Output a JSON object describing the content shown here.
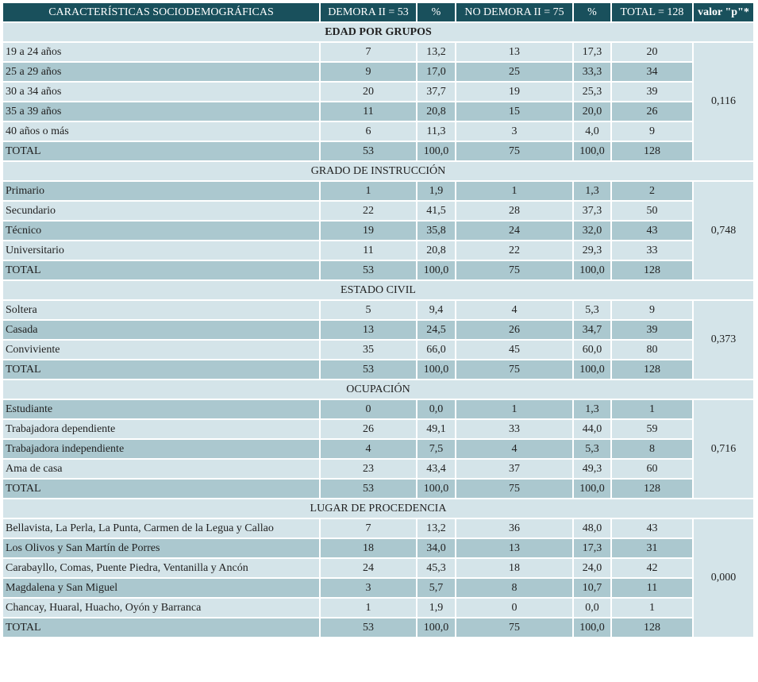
{
  "header": [
    "CARACTERÍSTICAS SOCIODEMOGRÁFICAS",
    "DEMORA II = 53",
    "%",
    "NO DEMORA II = 75",
    "%",
    "TOTAL = 128",
    "valor \"p\"*"
  ],
  "sections": [
    {
      "title": "EDAD POR GRUPOS",
      "p_value": "0,116",
      "rows": [
        [
          "19 a 24 años",
          "7",
          "13,2",
          "13",
          "17,3",
          "20"
        ],
        [
          "25 a 29 años",
          "9",
          "17,0",
          "25",
          "33,3",
          "34"
        ],
        [
          "30 a 34 años",
          "20",
          "37,7",
          "19",
          "25,3",
          "39"
        ],
        [
          "35 a 39 años",
          "11",
          "20,8",
          "15",
          "20,0",
          "26"
        ],
        [
          "40 años o más",
          "6",
          "11,3",
          "3",
          "4,0",
          "9"
        ],
        [
          "TOTAL",
          "53",
          "100,0",
          "75",
          "100,0",
          "128"
        ]
      ]
    },
    {
      "title": "GRADO DE INSTRUCCIÓN",
      "p_value": "0,748",
      "rows": [
        [
          "Primario",
          "1",
          "1,9",
          "1",
          "1,3",
          "2"
        ],
        [
          "Secundario",
          "22",
          "41,5",
          "28",
          "37,3",
          "50"
        ],
        [
          "Técnico",
          "19",
          "35,8",
          "24",
          "32,0",
          "43"
        ],
        [
          "Universitario",
          "11",
          "20,8",
          "22",
          "29,3",
          "33"
        ],
        [
          "TOTAL",
          "53",
          "100,0",
          "75",
          "100,0",
          "128"
        ]
      ]
    },
    {
      "title": "ESTADO CIVIL",
      "p_value": "0,373",
      "rows": [
        [
          "Soltera",
          "5",
          "9,4",
          "4",
          "5,3",
          "9"
        ],
        [
          "Casada",
          "13",
          "24,5",
          "26",
          "34,7",
          "39"
        ],
        [
          "Conviviente",
          "35",
          "66,0",
          "45",
          "60,0",
          "80"
        ],
        [
          "TOTAL",
          "53",
          "100,0",
          "75",
          "100,0",
          "128"
        ]
      ]
    },
    {
      "title": "OCUPACIÓN",
      "p_value": "0,716",
      "rows": [
        [
          "Estudiante",
          "0",
          "0,0",
          "1",
          "1,3",
          "1"
        ],
        [
          "Trabajadora dependiente",
          "26",
          "49,1",
          "33",
          "44,0",
          "59"
        ],
        [
          "Trabajadora independiente",
          "4",
          "7,5",
          "4",
          "5,3",
          "8"
        ],
        [
          "Ama de casa",
          "23",
          "43,4",
          "37",
          "49,3",
          "60"
        ],
        [
          "TOTAL",
          "53",
          "100,0",
          "75",
          "100,0",
          "128"
        ]
      ]
    },
    {
      "title": "LUGAR DE PROCEDENCIA",
      "p_value": "0,000",
      "rows": [
        [
          "Bellavista, La Perla, La Punta, Carmen de la Legua y Callao",
          "7",
          "13,2",
          "36",
          "48,0",
          "43"
        ],
        [
          "Los Olivos y San Martín de Porres",
          "18",
          "34,0",
          "13",
          "17,3",
          "31"
        ],
        [
          "Carabayllo, Comas, Puente Piedra, Ventanilla y Ancón",
          "24",
          "45,3",
          "18",
          "24,0",
          "42"
        ],
        [
          "Magdalena y San Miguel",
          "3",
          "5,7",
          "8",
          "10,7",
          "11"
        ],
        [
          "Chancay, Huaral, Huacho, Oyón y Barranca",
          "1",
          "1,9",
          "0",
          "0,0",
          "1"
        ],
        [
          "TOTAL",
          "53",
          "100,0",
          "75",
          "100,0",
          "128"
        ]
      ]
    }
  ]
}
